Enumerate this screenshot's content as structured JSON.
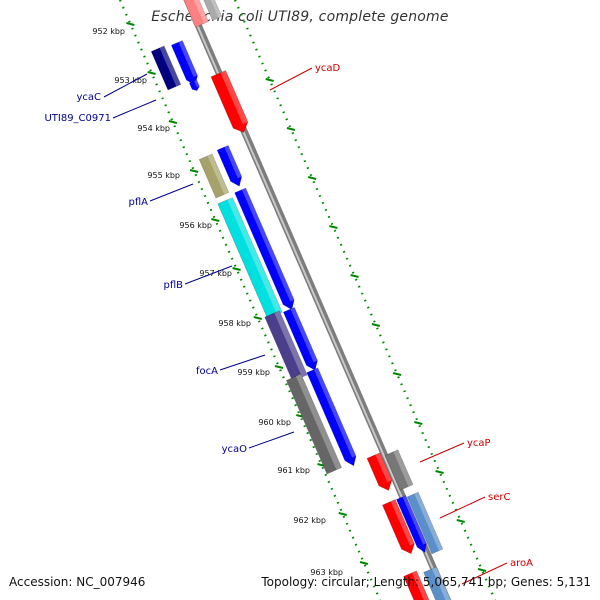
{
  "title": "Escherichia coli UTI89, complete genome",
  "footer": {
    "accession": "Accession: NC_007946",
    "summary": "Topology: circular; Length: 5,065,741 bp; Genes: 5,131"
  },
  "colors": {
    "forward": "#ff0000",
    "reverse": "#0000ff",
    "backbone": "#808080",
    "ticks": "#008800",
    "left_label": "#00008b",
    "right_label": "#cc0000"
  },
  "scale_labels": [
    "952 kbp",
    "953 kbp",
    "954 kbp",
    "955 kbp",
    "956 kbp",
    "957 kbp",
    "958 kbp",
    "959 kbp",
    "960 kbp",
    "961 kbp",
    "962 kbp",
    "963 kbp"
  ],
  "genes": [
    {
      "name": "ycaC",
      "side": "left"
    },
    {
      "name": "UTI89_C0971",
      "side": "left"
    },
    {
      "name": "pflA",
      "side": "left"
    },
    {
      "name": "pflB",
      "side": "left"
    },
    {
      "name": "focA",
      "side": "left"
    },
    {
      "name": "ycaO",
      "side": "left"
    },
    {
      "name": "ycaD",
      "side": "right"
    },
    {
      "name": "ycaP",
      "side": "right"
    },
    {
      "name": "serC",
      "side": "right"
    },
    {
      "name": "aroA",
      "side": "right"
    }
  ]
}
